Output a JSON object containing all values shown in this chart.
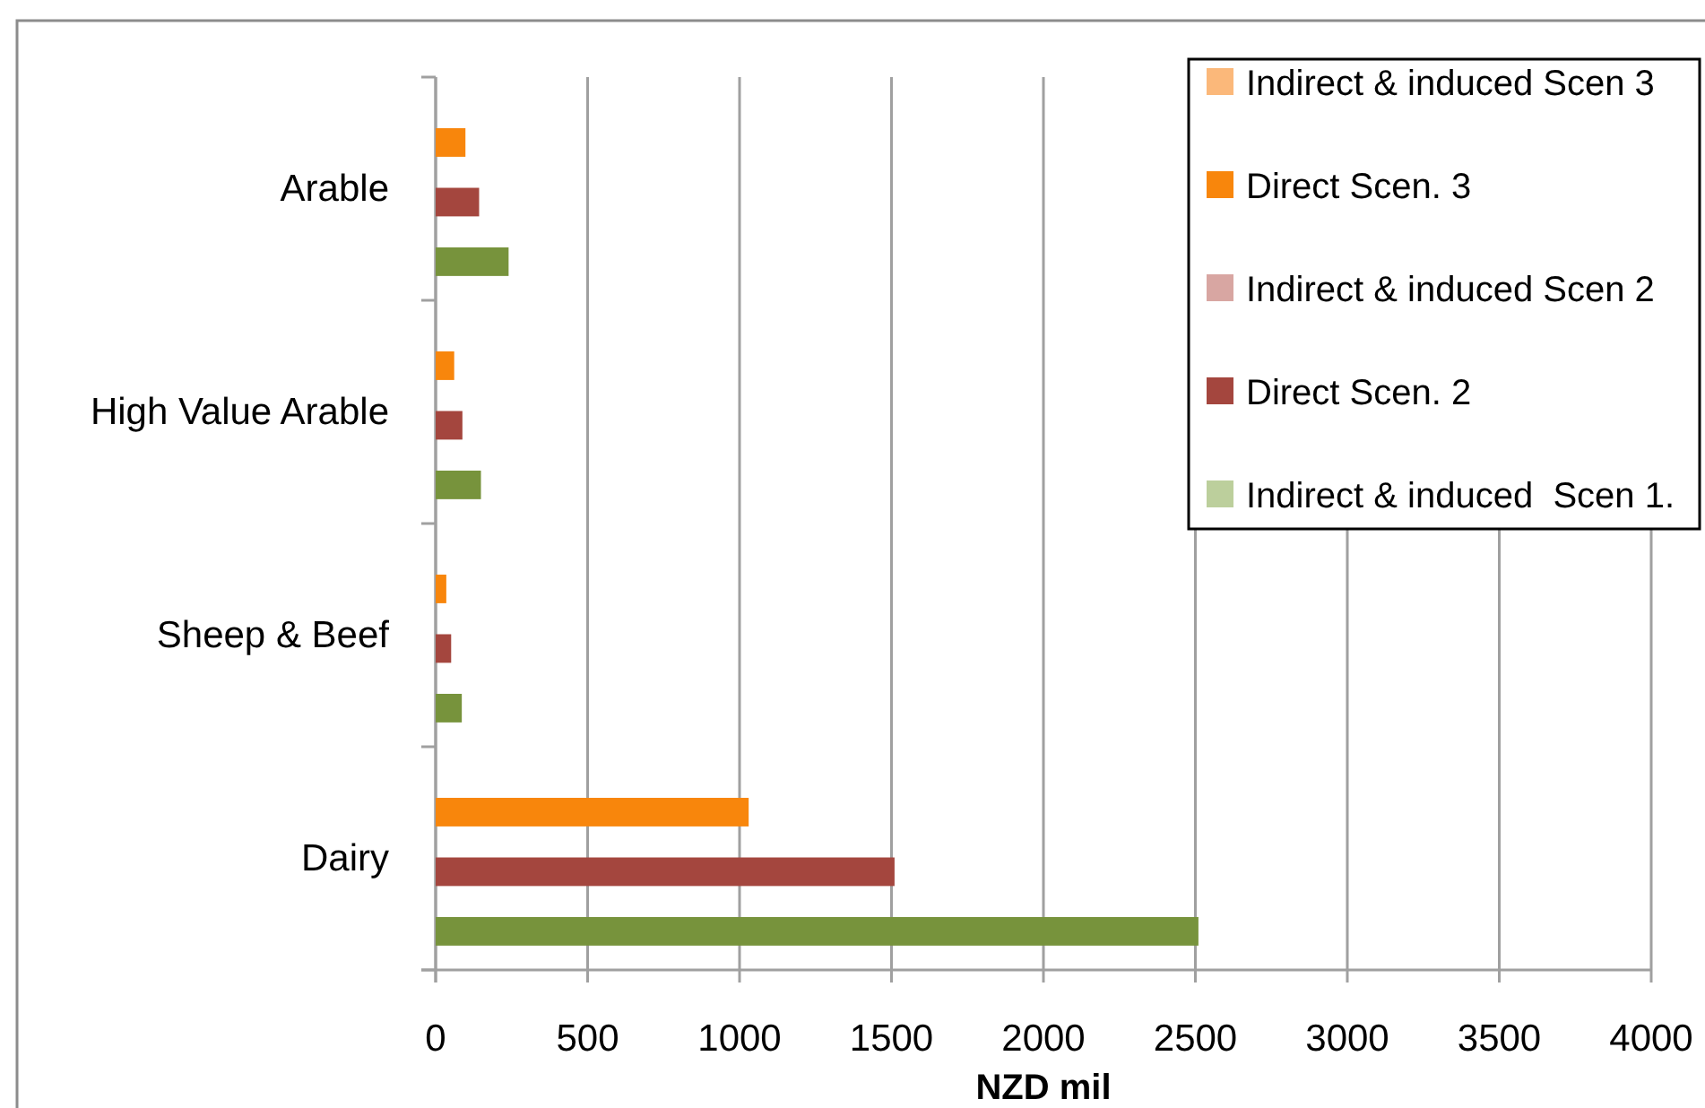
{
  "chart_data": {
    "type": "bar",
    "orientation": "horizontal",
    "categories": [
      "Arable",
      "High Value Arable",
      "Sheep & Beef",
      "Dairy"
    ],
    "series": [
      {
        "name": "Indirect & induced Scen 3",
        "color": "#fbb87a",
        "values": [
          null,
          null,
          null,
          null
        ]
      },
      {
        "name": "Direct Scen. 3",
        "color": "#f8860c",
        "values": [
          98,
          61,
          35,
          1030
        ]
      },
      {
        "name": "Indirect & induced Scen 2",
        "color": "#d8a6a2",
        "values": [
          null,
          null,
          null,
          null
        ]
      },
      {
        "name": "Direct Scen. 2",
        "color": "#a4463e",
        "values": [
          143,
          88,
          51,
          1510
        ]
      },
      {
        "name": "Indirect & induced  Scen 1.",
        "color": "#bccf9c",
        "values": [
          null,
          null,
          null,
          null
        ]
      },
      {
        "color": "#77933c",
        "values": [
          240,
          149,
          86,
          2510
        ]
      }
    ],
    "xlabel": "NZD mil",
    "xlim": [
      0,
      4000
    ],
    "xticks": [
      0,
      500,
      1000,
      1500,
      2000,
      2500,
      3000,
      3500,
      4000
    ],
    "grid": "x",
    "legend": "top right"
  }
}
